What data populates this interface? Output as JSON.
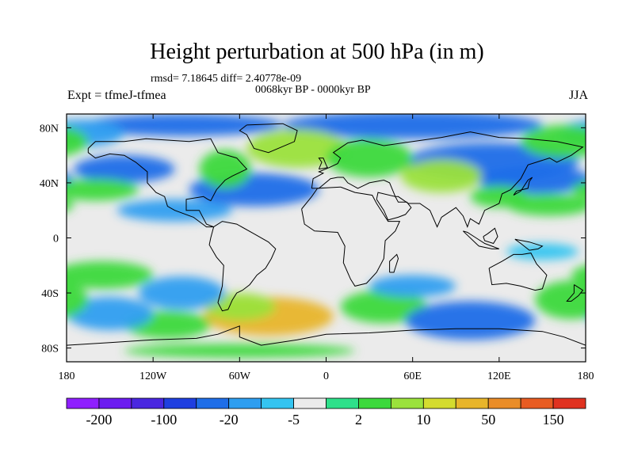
{
  "chart_data": {
    "type": "heatmap",
    "title": "Height perturbation at 500 hPa (in m)",
    "stats": "rmsd= 7.18645 diff= 2.40778e-09",
    "period": "0068kyr BP - 0000kyr BP",
    "experiment": "Expt = tfmeJ-tfmea",
    "season": "JJA",
    "xlim": [
      -180,
      180
    ],
    "ylim": [
      -90,
      90
    ],
    "x_ticks": [
      {
        "value": -180,
        "label": "180"
      },
      {
        "value": -120,
        "label": "120W"
      },
      {
        "value": -60,
        "label": "60W"
      },
      {
        "value": 0,
        "label": "0"
      },
      {
        "value": 60,
        "label": "60E"
      },
      {
        "value": 120,
        "label": "120E"
      },
      {
        "value": 180,
        "label": "180"
      }
    ],
    "y_ticks": [
      {
        "value": 80,
        "label": "80N"
      },
      {
        "value": 40,
        "label": "40N"
      },
      {
        "value": 0,
        "label": "0"
      },
      {
        "value": -40,
        "label": "40S"
      },
      {
        "value": -80,
        "label": "80S"
      }
    ],
    "colorbar": {
      "colors": [
        "#8f1fff",
        "#6c1cf0",
        "#4a27e0",
        "#1f3fe0",
        "#1f6ee8",
        "#2e9ef0",
        "#34c4f0",
        "#ebebeb",
        "#2ee08a",
        "#3cd93c",
        "#9be23c",
        "#d4dc2f",
        "#e8b52a",
        "#ea8d28",
        "#e85c22",
        "#e03220"
      ],
      "labels": [
        {
          "after": 1,
          "text": "-200"
        },
        {
          "after": 3,
          "text": "-100"
        },
        {
          "after": 5,
          "text": "-20"
        },
        {
          "after": 7,
          "text": "-5"
        },
        {
          "after": 9,
          "text": "2"
        },
        {
          "after": 11,
          "text": "10"
        },
        {
          "after": 13,
          "text": "50"
        },
        {
          "after": 15,
          "text": "150"
        }
      ]
    },
    "anomaly_regions": [
      {
        "lon": 115,
        "lat": 55,
        "rx": 60,
        "ry": 14,
        "v": -8
      },
      {
        "lon": 145,
        "lat": 42,
        "rx": 40,
        "ry": 10,
        "v": -8
      },
      {
        "lon": 60,
        "lat": 82,
        "rx": 90,
        "ry": 10,
        "v": -8
      },
      {
        "lon": -100,
        "lat": 82,
        "rx": 70,
        "ry": 8,
        "v": -8
      },
      {
        "lon": -140,
        "lat": 50,
        "rx": 35,
        "ry": 10,
        "v": -8
      },
      {
        "lon": -50,
        "lat": 35,
        "rx": 45,
        "ry": 12,
        "v": -8
      },
      {
        "lon": -105,
        "lat": 20,
        "rx": 40,
        "ry": 8,
        "v": -4
      },
      {
        "lon": -170,
        "lat": 76,
        "rx": 30,
        "ry": 10,
        "v": -4
      },
      {
        "lon": -70,
        "lat": 50,
        "rx": 18,
        "ry": 14,
        "v": 6
      },
      {
        "lon": -160,
        "lat": 35,
        "rx": 30,
        "ry": 8,
        "v": 5
      },
      {
        "lon": -20,
        "lat": 65,
        "rx": 35,
        "ry": 14,
        "v": 7
      },
      {
        "lon": 30,
        "lat": 58,
        "rx": 30,
        "ry": 14,
        "v": 6
      },
      {
        "lon": 80,
        "lat": 45,
        "rx": 28,
        "ry": 12,
        "v": 8
      },
      {
        "lon": 165,
        "lat": 70,
        "rx": 30,
        "ry": 12,
        "v": 6
      },
      {
        "lon": 155,
        "lat": 24,
        "rx": 30,
        "ry": 8,
        "v": 5
      },
      {
        "lon": 120,
        "lat": 30,
        "rx": 20,
        "ry": 8,
        "v": 4
      },
      {
        "lon": -155,
        "lat": -27,
        "rx": 35,
        "ry": 10,
        "v": 6
      },
      {
        "lon": -40,
        "lat": -57,
        "rx": 45,
        "ry": 14,
        "v": 12
      },
      {
        "lon": -60,
        "lat": -50,
        "rx": 25,
        "ry": 10,
        "v": 8
      },
      {
        "lon": 40,
        "lat": -50,
        "rx": 30,
        "ry": 12,
        "v": 6
      },
      {
        "lon": -110,
        "lat": -63,
        "rx": 30,
        "ry": 10,
        "v": 5
      },
      {
        "lon": -60,
        "lat": -82,
        "rx": 80,
        "ry": 5,
        "v": 4
      },
      {
        "lon": 100,
        "lat": -60,
        "rx": 45,
        "ry": 14,
        "v": -7
      },
      {
        "lon": -150,
        "lat": -55,
        "rx": 30,
        "ry": 12,
        "v": -6
      },
      {
        "lon": -100,
        "lat": -40,
        "rx": 30,
        "ry": 12,
        "v": -5
      },
      {
        "lon": 60,
        "lat": -35,
        "rx": 30,
        "ry": 8,
        "v": -4
      },
      {
        "lon": 170,
        "lat": -45,
        "rx": 25,
        "ry": 14,
        "v": 5
      },
      {
        "lon": 150,
        "lat": -10,
        "rx": 25,
        "ry": 6,
        "v": -3
      }
    ]
  }
}
